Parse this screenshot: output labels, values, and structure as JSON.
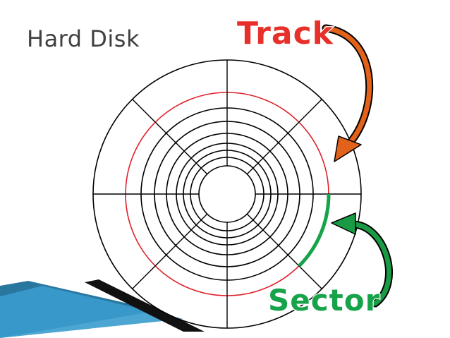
{
  "slide": {
    "title": "Hard Disk"
  },
  "labels": {
    "track": "Track",
    "sector": "Sector"
  },
  "colors": {
    "background": "#ffffff",
    "title_text": "#404040",
    "disk_lines": "#000000",
    "highlighted_track": "#e0202a",
    "highlighted_sector": "#16a34a",
    "track_label": "#e8302a",
    "track_arrow": "#e2621c",
    "sector_label": "#16a34a",
    "sector_arrow": "#1a9a45",
    "corner_accent": "#1e6f9a"
  },
  "icons": {
    "track_pointer": "curved-arrow-icon",
    "sector_pointer": "curved-arrow-icon"
  },
  "disk": {
    "track_count": 8,
    "sector_count": 8,
    "highlighted_track": 7,
    "highlighted_sector": 3
  }
}
